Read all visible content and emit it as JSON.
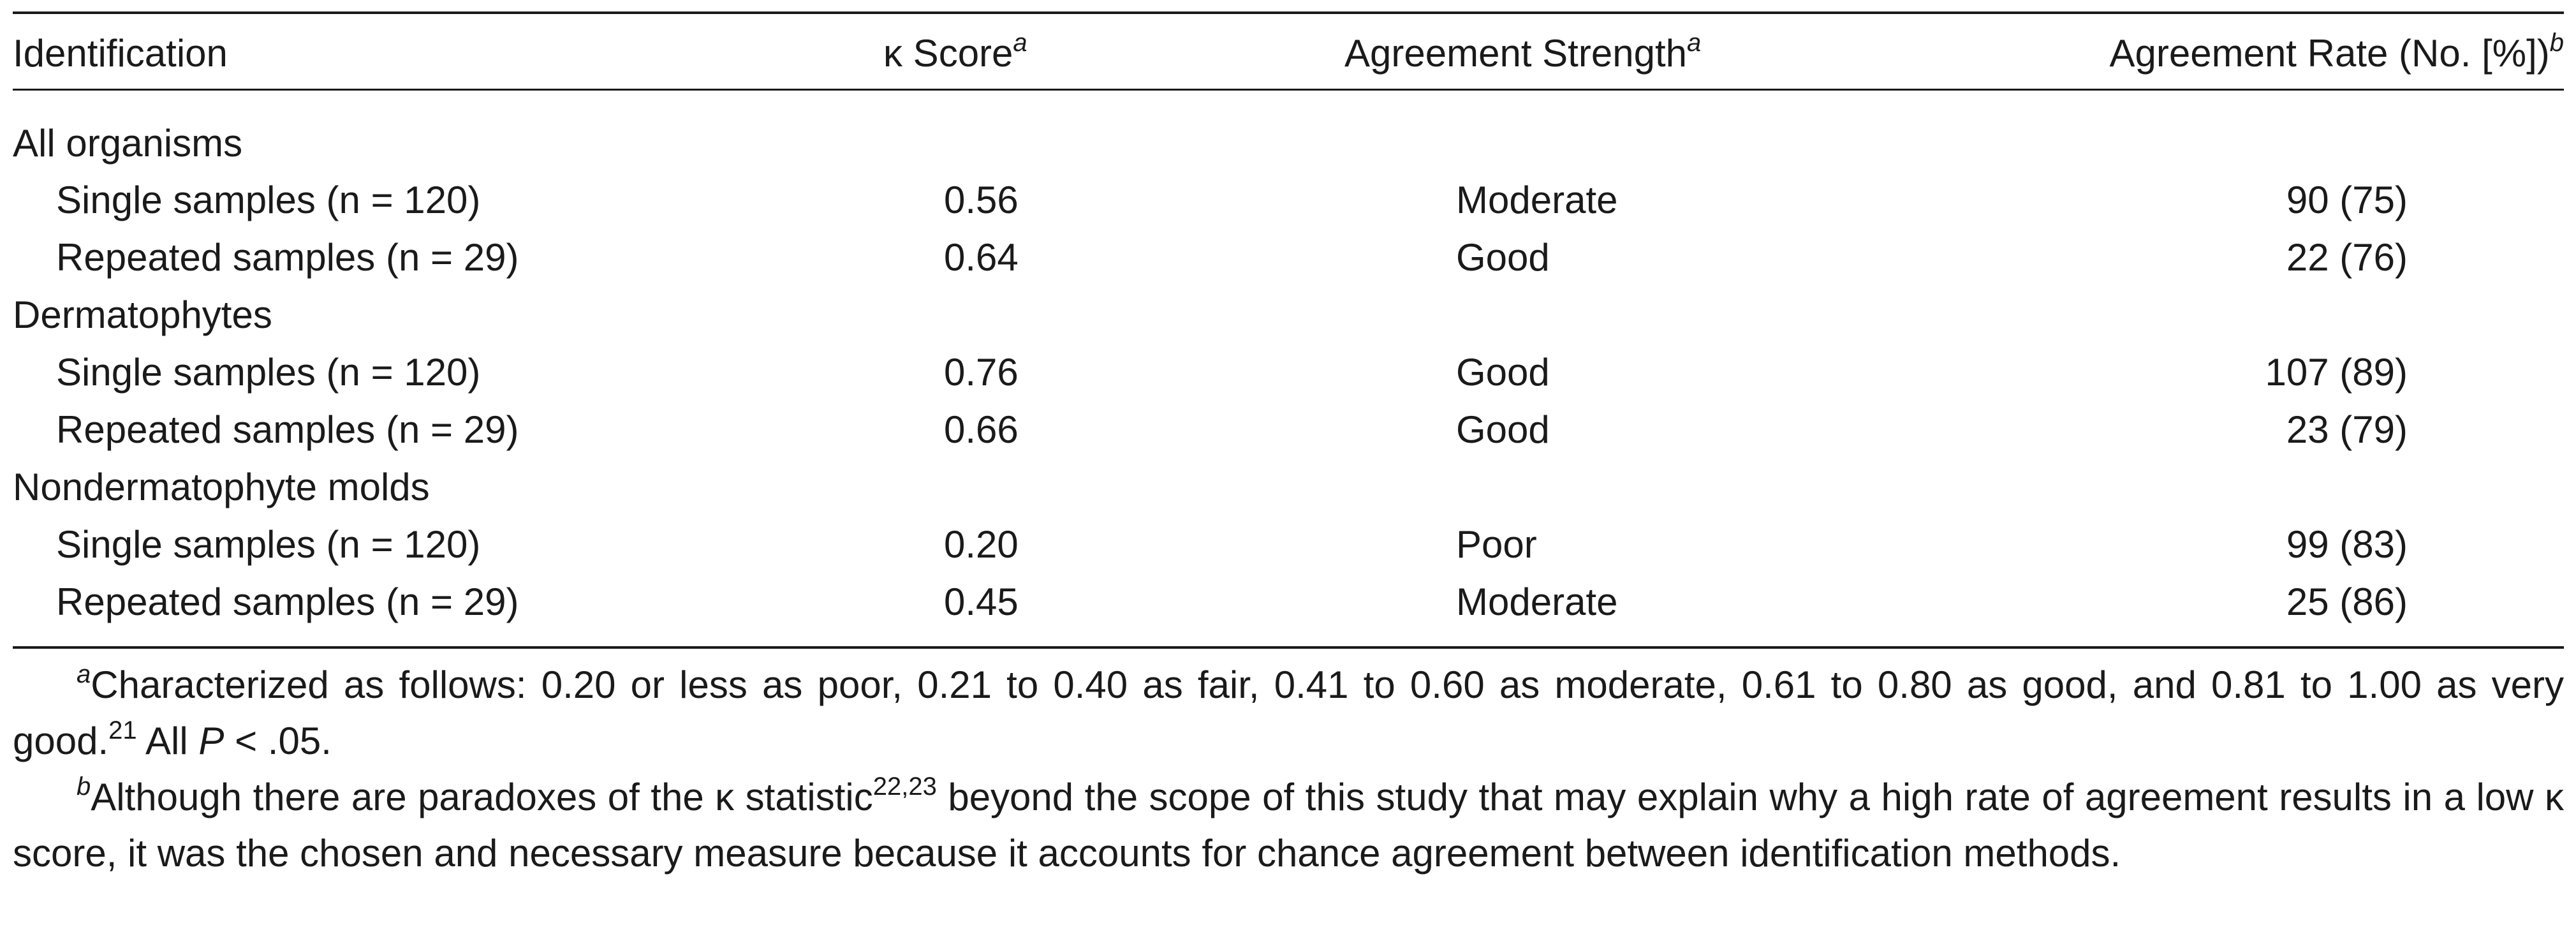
{
  "table": {
    "headers": {
      "identification": "Identification",
      "kappa_score": "κ Score",
      "kappa_score_sup": "a",
      "agreement_strength": "Agreement Strength",
      "agreement_strength_sup": "a",
      "agreement_rate": "Agreement Rate (No. [%])",
      "agreement_rate_sup": "b"
    },
    "groups": [
      {
        "label": "All organisms",
        "rows": [
          {
            "label": "Single samples (n = 120)",
            "kappa": "0.56",
            "strength": "Moderate",
            "rate": "90 (75)"
          },
          {
            "label": "Repeated samples (n = 29)",
            "kappa": "0.64",
            "strength": "Good",
            "rate": "22 (76)"
          }
        ]
      },
      {
        "label": "Dermatophytes",
        "rows": [
          {
            "label": "Single samples (n = 120)",
            "kappa": "0.76",
            "strength": "Good",
            "rate": "107 (89)"
          },
          {
            "label": "Repeated samples (n = 29)",
            "kappa": "0.66",
            "strength": "Good",
            "rate": "23 (79)"
          }
        ]
      },
      {
        "label": "Nondermatophyte molds",
        "rows": [
          {
            "label": "Single samples (n = 120)",
            "kappa": "0.20",
            "strength": "Poor",
            "rate": "99 (83)"
          },
          {
            "label": "Repeated samples (n = 29)",
            "kappa": "0.45",
            "strength": "Moderate",
            "rate": "25 (86)"
          }
        ]
      }
    ]
  },
  "footnotes": {
    "a": {
      "marker": "a",
      "text": "Characterized as follows: 0.20 or less as poor, 0.21 to 0.40 as fair, 0.41 to 0.60 as moderate, 0.61 to 0.80 as good, and 0.81 to 1.00 as very good.",
      "ref": "21",
      "text2": " All ",
      "p_symbol": "P",
      "text3": " < .05."
    },
    "b": {
      "marker": "b",
      "text": "Although there are paradoxes of the κ statistic",
      "ref": "22,23",
      "text2": " beyond the scope of this study that may explain why a high rate of agreement results in a low κ score, it was the chosen and necessary measure because it accounts for chance agreement between identification methods."
    }
  }
}
